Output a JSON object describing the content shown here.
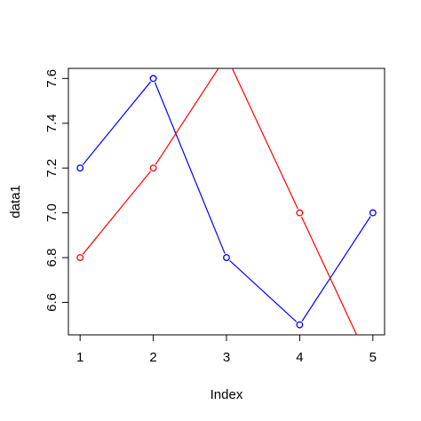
{
  "chart_data": {
    "type": "line",
    "title": "",
    "xlabel": "Index",
    "ylabel": "data1",
    "x": [
      1,
      2,
      3,
      4,
      5
    ],
    "xlim": [
      0.84,
      5.16
    ],
    "ylim": [
      6.455,
      7.645
    ],
    "x_ticks": [
      "1",
      "2",
      "3",
      "4",
      "5"
    ],
    "y_ticks": [
      "6.6",
      "6.8",
      "7.0",
      "7.2",
      "7.4",
      "7.6"
    ],
    "grid": false,
    "legend": "none",
    "series": [
      {
        "color": "#0000ff",
        "values": [
          7.2,
          7.6,
          6.8,
          6.5,
          7.0
        ]
      },
      {
        "color": "#ff0000",
        "values": [
          6.8,
          7.2,
          7.7,
          7.0,
          6.3
        ]
      }
    ]
  }
}
